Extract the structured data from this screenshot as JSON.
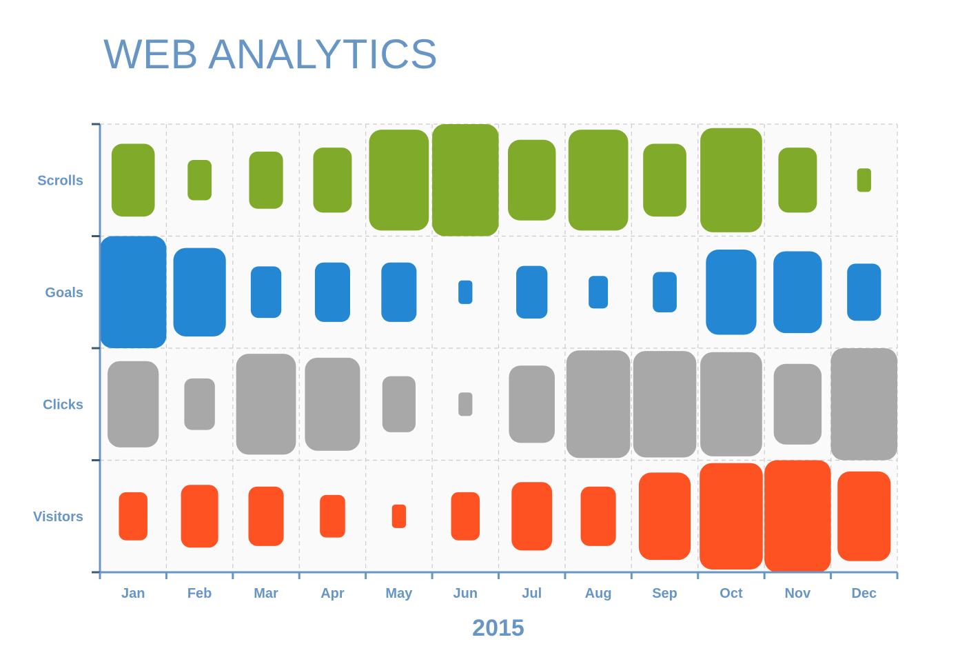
{
  "chart_data": {
    "type": "heatmap",
    "title": "WEB ANALYTICS",
    "xlabel": "2015",
    "categories": [
      "Jan",
      "Feb",
      "Mar",
      "Apr",
      "May",
      "Jun",
      "Jul",
      "Aug",
      "Sep",
      "Oct",
      "Nov",
      "Dec"
    ],
    "rows": [
      "Scrolls",
      "Goals",
      "Clicks",
      "Visitors"
    ],
    "grid": true,
    "series": [
      {
        "name": "Scrolls",
        "color": "#80aa2a",
        "values": [
          0.65,
          0.36,
          0.51,
          0.58,
          0.9,
          1.0,
          0.72,
          0.9,
          0.65,
          0.93,
          0.58,
          0.21
        ]
      },
      {
        "name": "Goals",
        "color": "#2387d4",
        "values": [
          1.0,
          0.79,
          0.46,
          0.53,
          0.53,
          0.21,
          0.47,
          0.29,
          0.36,
          0.76,
          0.73,
          0.51
        ]
      },
      {
        "name": "Clicks",
        "color": "#a8a8a8",
        "values": [
          0.77,
          0.46,
          0.9,
          0.83,
          0.5,
          0.21,
          0.69,
          0.96,
          0.95,
          0.93,
          0.72,
          1.0
        ]
      },
      {
        "name": "Visitors",
        "color": "#fe5222",
        "values": [
          0.43,
          0.56,
          0.53,
          0.38,
          0.21,
          0.43,
          0.61,
          0.53,
          0.78,
          0.95,
          1.0,
          0.8
        ]
      }
    ]
  }
}
